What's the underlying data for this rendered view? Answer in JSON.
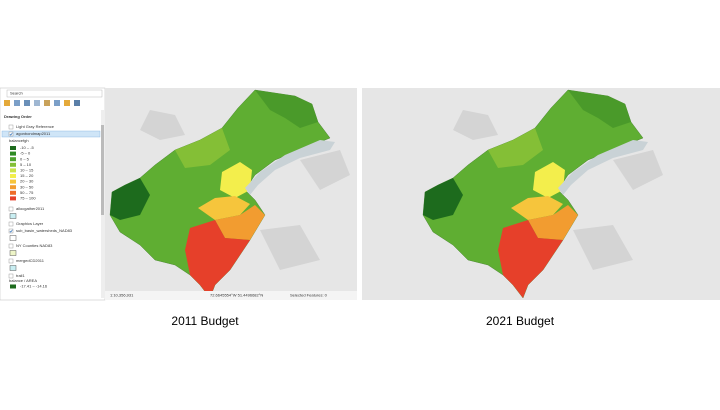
{
  "panel": {
    "search": "Search",
    "heading": "Drawing Order",
    "layers": [
      {
        "name": "Light Gray Reference",
        "y": 0
      },
      {
        "name": "agonbondmap2011",
        "selected": true
      }
    ],
    "legend_title": "balancefgh",
    "legend": [
      {
        "label": "-10 – -5",
        "color": "#1d6b1d"
      },
      {
        "label": "-5 – 0",
        "color": "#2f8a24"
      },
      {
        "label": "0 – 5",
        "color": "#4ea22e"
      },
      {
        "label": "5 – 10",
        "color": "#84bf36"
      },
      {
        "label": "10 – 15",
        "color": "#cbe34c"
      },
      {
        "label": "15 – 20",
        "color": "#f3ee4c"
      },
      {
        "label": "20 – 30",
        "color": "#f6c53c"
      },
      {
        "label": "30 – 50",
        "color": "#f29c30"
      },
      {
        "label": "50 – 75",
        "color": "#ee6c2a"
      },
      {
        "label": "75 – 100",
        "color": "#e6402a"
      }
    ],
    "more_layers": [
      {
        "name": "allocgather2011",
        "swatch": "#c9eef2"
      },
      {
        "name": "Graphics Layer"
      },
      {
        "name": "sub_basin_watersheds_NAD83",
        "swatch": "#ffffff"
      },
      {
        "name": "NY Counties NAD83",
        "swatch": "#eef5c8"
      },
      {
        "name": "mergedCD2011",
        "swatch": "#c9eef2"
      },
      {
        "name": "trail1"
      }
    ],
    "last_legend_title": "balance / AREA",
    "last_legend": {
      "label": "-17.41 – -14.16",
      "color": "#1d6b1d"
    }
  },
  "status": {
    "scale": "1:10,356,931",
    "coords": "72.6645554°W 51.4496682°N",
    "selected": "Selected Features: 0"
  },
  "captions": [
    "2011 Budget",
    "2021 Budget"
  ]
}
